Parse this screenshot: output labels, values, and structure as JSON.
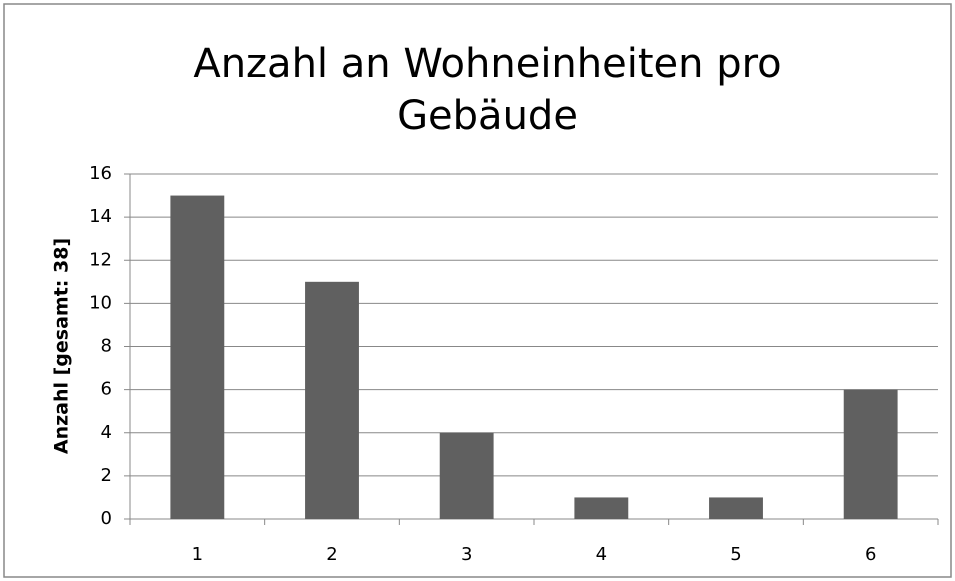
{
  "chart_data": {
    "type": "bar",
    "title": "Anzahl an Wohneinheiten pro Gebäude",
    "y_label": "Anzahl  [gesamt: 38]",
    "categories": [
      "1",
      "2",
      "3",
      "4",
      "5",
      "6"
    ],
    "values": [
      15,
      11,
      4,
      1,
      1,
      6
    ],
    "color": "#606060",
    "ylim": [
      0,
      16
    ],
    "yticks": [
      0,
      2,
      4,
      6,
      8,
      10,
      12,
      14,
      16
    ],
    "grid": true
  }
}
